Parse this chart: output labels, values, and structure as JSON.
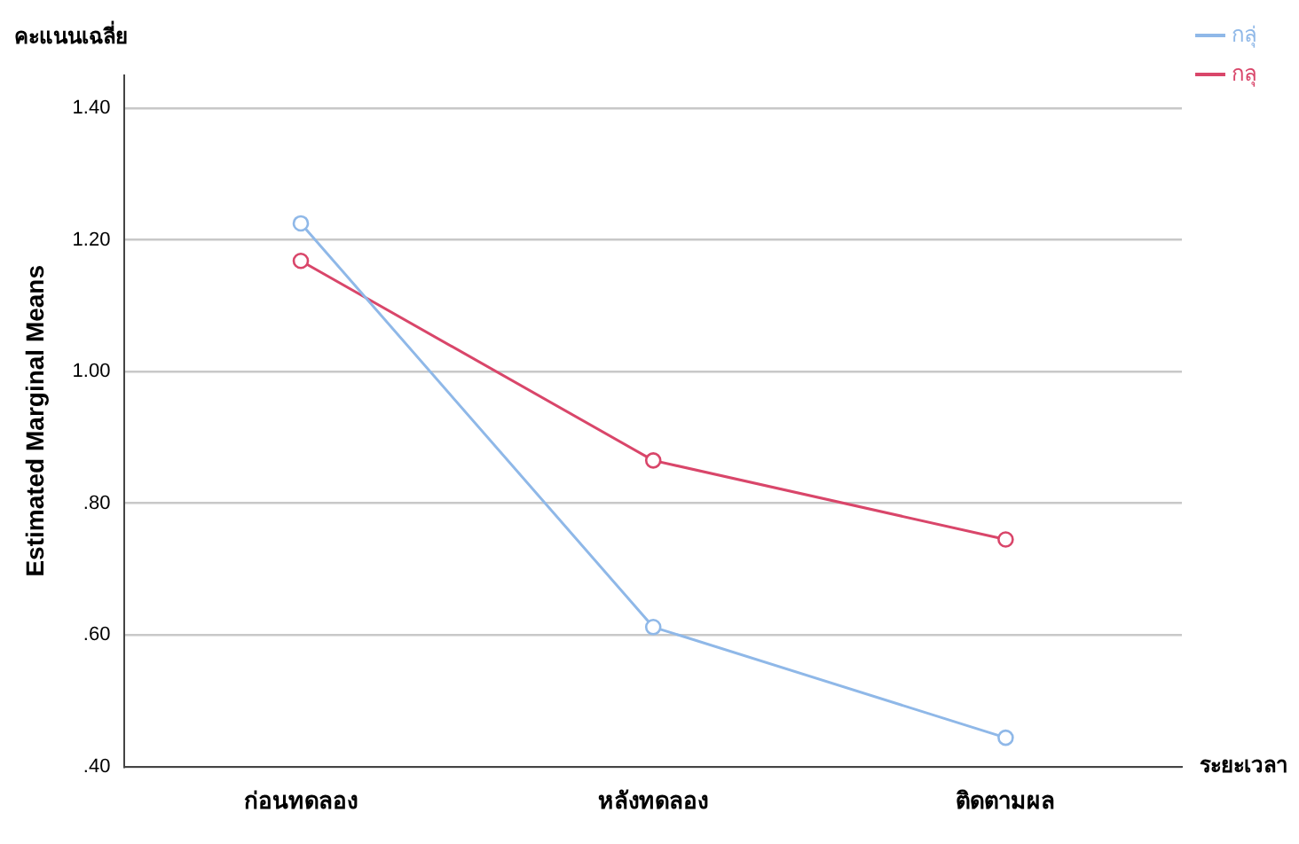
{
  "chart_data": {
    "type": "line",
    "title": "คะแนนเฉลี่ย",
    "ylabel": "Estimated Marginal Means",
    "xlabel": "ระยะเวลา",
    "categories": [
      "ก่อนทดลอง",
      "หลังทดลอง",
      "ติดตามผล"
    ],
    "series": [
      {
        "name": "กลุ่",
        "color": "#8fb8e8",
        "values": [
          1.225,
          0.612,
          0.444
        ]
      },
      {
        "name": "กลุ",
        "color": "#d9466a",
        "values": [
          1.168,
          0.865,
          0.745
        ]
      }
    ],
    "ylim": [
      0.4,
      1.45
    ],
    "yticks": [
      {
        "value": 0.4,
        "label": ".40"
      },
      {
        "value": 0.6,
        "label": ".60"
      },
      {
        "value": 0.8,
        "label": ".80"
      },
      {
        "value": 1.0,
        "label": "1.00"
      },
      {
        "value": 1.2,
        "label": "1.20"
      },
      {
        "value": 1.4,
        "label": "1.40"
      }
    ],
    "grid": "y",
    "legend": "top right",
    "marker": "circle",
    "line_style": "solid"
  }
}
